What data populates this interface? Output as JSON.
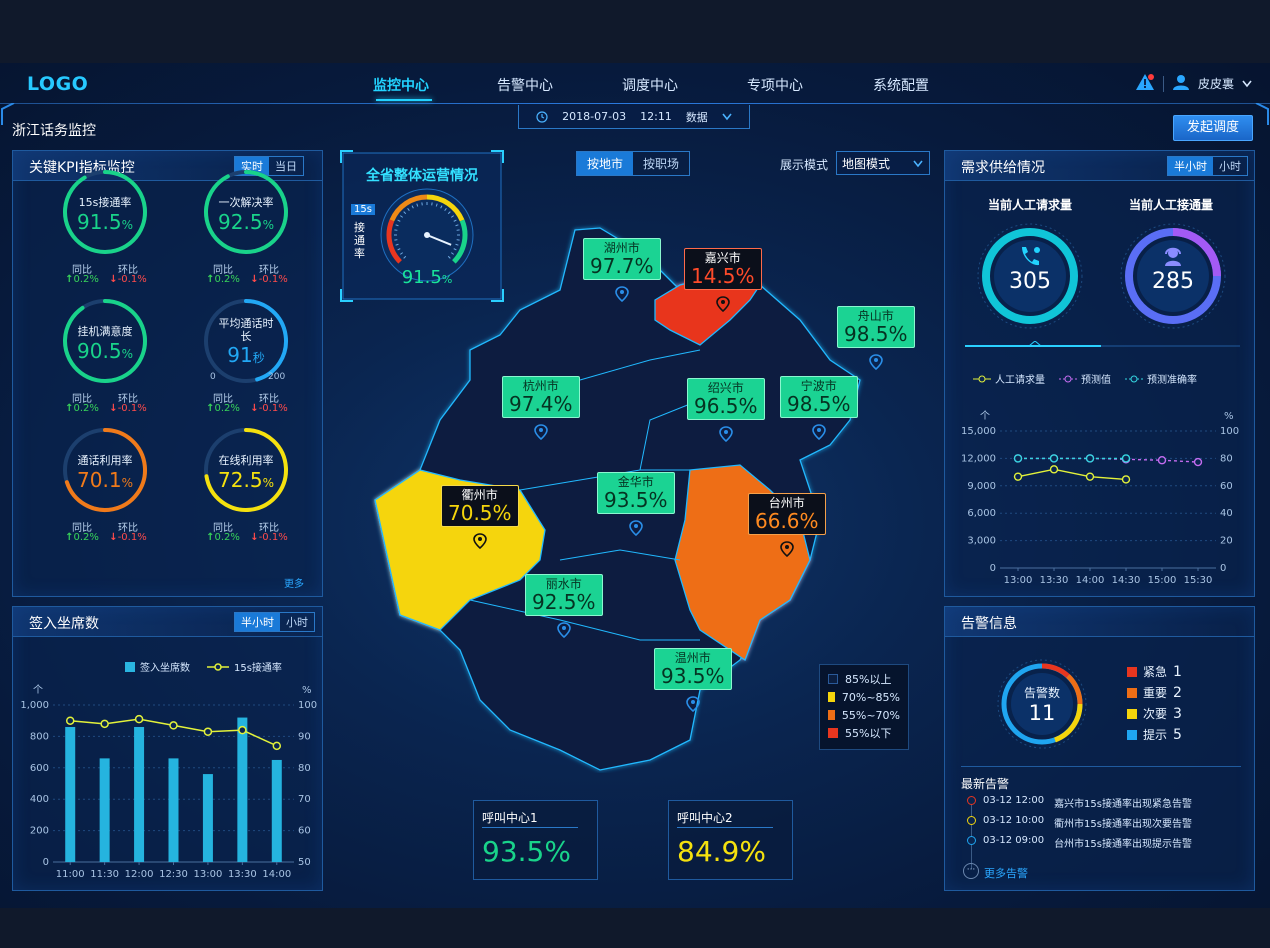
{
  "nav": {
    "logo": "LOGO",
    "items": [
      "监控中心",
      "告警中心",
      "调度中心",
      "专项中心",
      "系统配置"
    ],
    "user": "皮皮裏"
  },
  "page": {
    "title": "浙江话务监控",
    "date": "2018-07-03",
    "time": "12:11",
    "data_label": "数据",
    "dispatch_button": "发起调度"
  },
  "kpi_panel": {
    "title": "关键KPI指标监控",
    "toggle": [
      "实时",
      "当日"
    ],
    "more": "更多",
    "compare_labels": [
      "同比",
      "环比"
    ],
    "items": [
      {
        "name": "15s接通率",
        "value": "91.5",
        "unit": "%",
        "yoy": "0.2%",
        "mom": "-0.1%",
        "color": "#19d38a",
        "level": 0.915
      },
      {
        "name": "一次解决率",
        "value": "92.5",
        "unit": "%",
        "yoy": "0.2%",
        "mom": "-0.1%",
        "color": "#19d38a",
        "level": 0.925
      },
      {
        "name": "挂机满意度",
        "value": "90.5",
        "unit": "%",
        "yoy": "0.2%",
        "mom": "-0.1%",
        "color": "#19d38a",
        "level": 0.905
      },
      {
        "name": "平均通话时长",
        "value": "91",
        "unit": "秒",
        "yoy": "0.2%",
        "mom": "-0.1%",
        "color": "#22a8f5",
        "level": 0.455,
        "min": "0",
        "max": "200"
      },
      {
        "name": "通话利用率",
        "value": "70.1",
        "unit": "%",
        "yoy": "0.2%",
        "mom": "-0.1%",
        "color": "#f07a1a",
        "level": 0.701
      },
      {
        "name": "在线利用率",
        "value": "72.5",
        "unit": "%",
        "yoy": "0.2%",
        "mom": "-0.1%",
        "color": "#f5e10e",
        "level": 0.725
      }
    ]
  },
  "seats_panel": {
    "title": "签入坐席数",
    "toggle": [
      "半小时",
      "小时"
    ],
    "legend": [
      "签入坐席数",
      "15s接通率"
    ],
    "y_unit_left": "个",
    "y_unit_right": "%"
  },
  "gauge": {
    "title": "全省整体运营情况",
    "badge": "15s",
    "label": "接通率",
    "value": "91.5",
    "unit": "%",
    "level": 0.915
  },
  "map": {
    "tabs": [
      "按地市",
      "按职场"
    ],
    "mode_label": "展示模式",
    "mode_value": "地图模式",
    "cities": [
      {
        "name": "湖州市",
        "value": "97.7%"
      },
      {
        "name": "嘉兴市",
        "value": "14.5%"
      },
      {
        "name": "舟山市",
        "value": "98.5%"
      },
      {
        "name": "杭州市",
        "value": "97.4%"
      },
      {
        "name": "绍兴市",
        "value": "96.5%"
      },
      {
        "name": "宁波市",
        "value": "98.5%"
      },
      {
        "name": "衢州市",
        "value": "70.5%"
      },
      {
        "name": "金华市",
        "value": "93.5%"
      },
      {
        "name": "台州市",
        "value": "66.6%"
      },
      {
        "name": "丽水市",
        "value": "92.5%"
      },
      {
        "name": "温州市",
        "value": "93.5%"
      }
    ],
    "legend": [
      {
        "label": "85%以上",
        "color": "#0b1e40"
      },
      {
        "label": "70%~85%",
        "color": "#f5d50c"
      },
      {
        "label": "55%~70%",
        "color": "#ee6e16"
      },
      {
        "label": "55%以下",
        "color": "#e8361f"
      }
    ]
  },
  "call_centers": [
    {
      "name": "呼叫中心1",
      "value": "93.5%",
      "color": "#19d38a"
    },
    {
      "name": "呼叫中心2",
      "value": "84.9%",
      "color": "#f5e10e"
    }
  ],
  "supply_panel": {
    "title": "需求供给情况",
    "toggle": [
      "半小时",
      "小时"
    ],
    "req_label": "当前人工请求量",
    "req_value": "305",
    "conn_label": "当前人工接通量",
    "conn_value": "285",
    "legend": [
      "人工请求量",
      "预测值",
      "预测准确率"
    ],
    "y_unit_left": "个",
    "y_unit_right": "%"
  },
  "alarm_panel": {
    "title": "告警信息",
    "total_label": "告警数",
    "total": "11",
    "levels": [
      {
        "label": "紧急",
        "count": "1",
        "color": "#e8361f"
      },
      {
        "label": "重要",
        "count": "2",
        "color": "#ee6e16"
      },
      {
        "label": "次要",
        "count": "3",
        "color": "#f5d50c"
      },
      {
        "label": "提示",
        "count": "5",
        "color": "#1fa5f0"
      }
    ],
    "recent_title": "最新告警",
    "recent": [
      {
        "time": "03-12 12:00",
        "text": "嘉兴市15s接通率出现紧急告警",
        "color": "#e8361f"
      },
      {
        "time": "03-12 10:00",
        "text": "衢州市15s接通率出现次要告警",
        "color": "#f5d50c"
      },
      {
        "time": "03-12 09:00",
        "text": "台州市15s接通率出现提示告警",
        "color": "#1fa5f0"
      }
    ],
    "more": "更多告警"
  },
  "chart_data": [
    {
      "type": "bar",
      "x": [
        "11:00",
        "11:30",
        "12:00",
        "12:30",
        "13:00",
        "13:30",
        "14:00"
      ],
      "series": [
        {
          "name": "签入坐席数",
          "type": "bar",
          "axis": "left",
          "values": [
            860,
            660,
            860,
            660,
            560,
            920,
            650
          ]
        },
        {
          "name": "15s接通率",
          "type": "line",
          "axis": "right",
          "values": [
            95,
            94,
            95.5,
            93.5,
            91.5,
            92,
            87
          ]
        }
      ],
      "ylim_left": [
        0,
        1000
      ],
      "yticks_left": [
        0,
        200,
        400,
        600,
        800,
        1000
      ],
      "ylim_right": [
        50,
        100
      ],
      "yticks_right": [
        50,
        60,
        70,
        80,
        90,
        100
      ],
      "ylabel_left": "个",
      "ylabel_right": "%",
      "grid": true
    },
    {
      "type": "line",
      "x": [
        "13:00",
        "13:30",
        "14:00",
        "14:30",
        "15:00",
        "15:30"
      ],
      "series": [
        {
          "name": "人工请求量",
          "axis": "left",
          "values": [
            10000,
            10800,
            10000,
            9700,
            null,
            null
          ]
        },
        {
          "name": "预测值",
          "axis": "left",
          "values": [
            12000,
            12000,
            12000,
            11900,
            11800,
            11600
          ]
        },
        {
          "name": "预测准确率",
          "axis": "right",
          "values": [
            80,
            80,
            80,
            80,
            null,
            null
          ]
        }
      ],
      "ylim_left": [
        0,
        15000
      ],
      "yticks_left": [
        0,
        3000,
        6000,
        9000,
        12000,
        15000
      ],
      "ylim_right": [
        0,
        100
      ],
      "yticks_right": [
        0,
        20,
        40,
        60,
        80,
        100
      ],
      "ylabel_left": "个",
      "ylabel_right": "%",
      "grid": true
    }
  ]
}
